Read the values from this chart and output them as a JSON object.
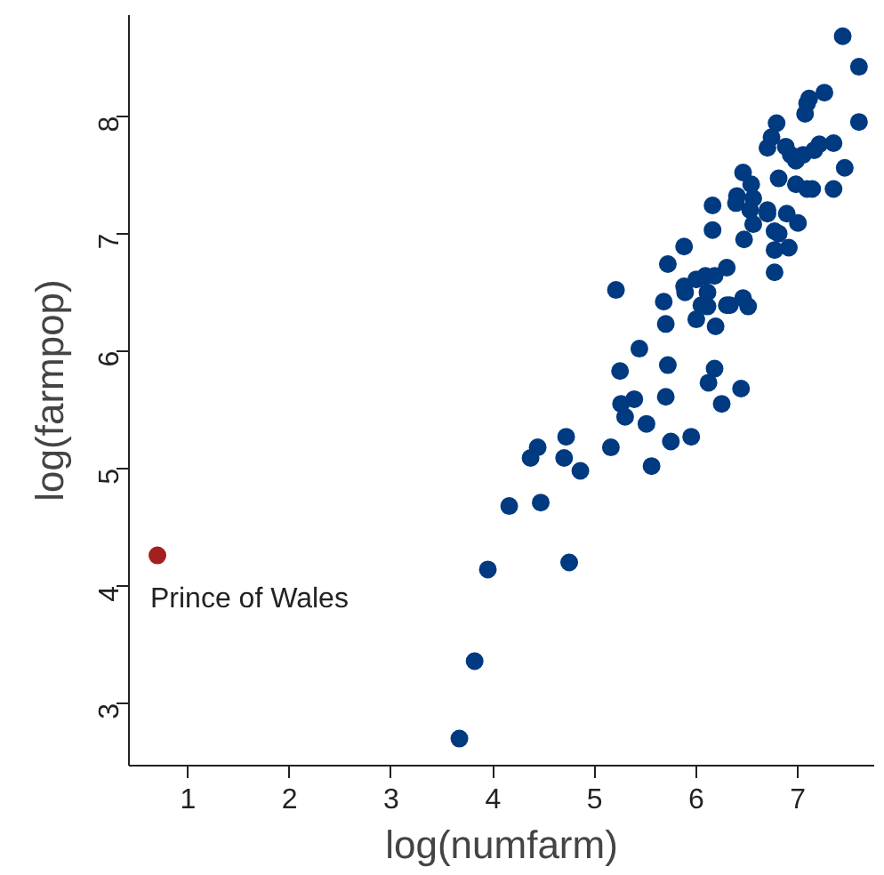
{
  "chart_data": {
    "type": "scatter",
    "xlabel": "log(numfarm)",
    "ylabel": "log(farmpop)",
    "xlim": [
      0.42,
      7.75
    ],
    "ylim": [
      2.47,
      8.86
    ],
    "xticks": [
      1,
      2,
      3,
      4,
      5,
      6,
      7
    ],
    "yticks": [
      3,
      4,
      5,
      6,
      7,
      8
    ],
    "grid": false,
    "marker": "circle",
    "series": [
      {
        "color": "#003a80",
        "x": [
          7.44,
          7.6,
          7.26,
          7.11,
          7.09,
          7.07,
          7.6,
          6.79,
          6.74,
          6.7,
          6.88,
          6.93,
          6.98,
          7.05,
          7.16,
          7.21,
          7.35,
          6.46,
          6.81,
          6.98,
          7.09,
          7.14,
          7.35,
          7.46,
          6.54,
          6.56,
          6.4,
          6.39,
          6.16,
          6.53,
          6.7,
          6.7,
          6.89,
          7.0,
          6.56,
          6.16,
          6.47,
          6.77,
          6.81,
          5.88,
          6.77,
          6.91,
          5.72,
          6.3,
          6.77,
          5.21,
          5.88,
          5.89,
          6.0,
          6.09,
          6.18,
          6.11,
          5.68,
          6.05,
          6.11,
          6.3,
          6.33,
          6.46,
          6.51,
          6.0,
          5.7,
          6.19,
          5.44,
          5.25,
          5.72,
          6.18,
          6.12,
          6.44,
          5.7,
          5.39,
          5.26,
          5.3,
          6.25,
          5.51,
          5.16,
          5.75,
          5.95,
          5.56,
          4.72,
          4.44,
          4.37,
          4.7,
          4.86,
          4.16,
          4.47,
          3.95,
          4.75,
          3.82,
          3.67
        ],
        "values": [
          8.68,
          8.42,
          8.2,
          8.15,
          8.11,
          8.02,
          7.95,
          7.94,
          7.82,
          7.73,
          7.74,
          7.67,
          7.62,
          7.67,
          7.71,
          7.76,
          7.77,
          7.52,
          7.47,
          7.42,
          7.38,
          7.38,
          7.38,
          7.56,
          7.42,
          7.3,
          7.32,
          7.26,
          7.24,
          7.2,
          7.2,
          7.17,
          7.17,
          7.09,
          7.08,
          7.03,
          6.95,
          7.02,
          7.0,
          6.89,
          6.86,
          6.88,
          6.74,
          6.71,
          6.67,
          6.52,
          6.55,
          6.5,
          6.61,
          6.64,
          6.64,
          6.5,
          6.42,
          6.39,
          6.38,
          6.39,
          6.39,
          6.45,
          6.38,
          6.27,
          6.23,
          6.21,
          6.02,
          5.83,
          5.88,
          5.85,
          5.73,
          5.68,
          5.61,
          5.59,
          5.55,
          5.44,
          5.55,
          5.38,
          5.18,
          5.23,
          5.27,
          5.02,
          5.27,
          5.18,
          5.09,
          5.09,
          4.98,
          4.68,
          4.71,
          4.14,
          4.2,
          3.36,
          2.7
        ]
      },
      {
        "color": "#a3201f",
        "x": [
          0.7
        ],
        "values": [
          4.26
        ]
      }
    ],
    "annotations": [
      {
        "text": "Prince of Wales",
        "x": 0.7,
        "y": 4.26
      }
    ]
  }
}
